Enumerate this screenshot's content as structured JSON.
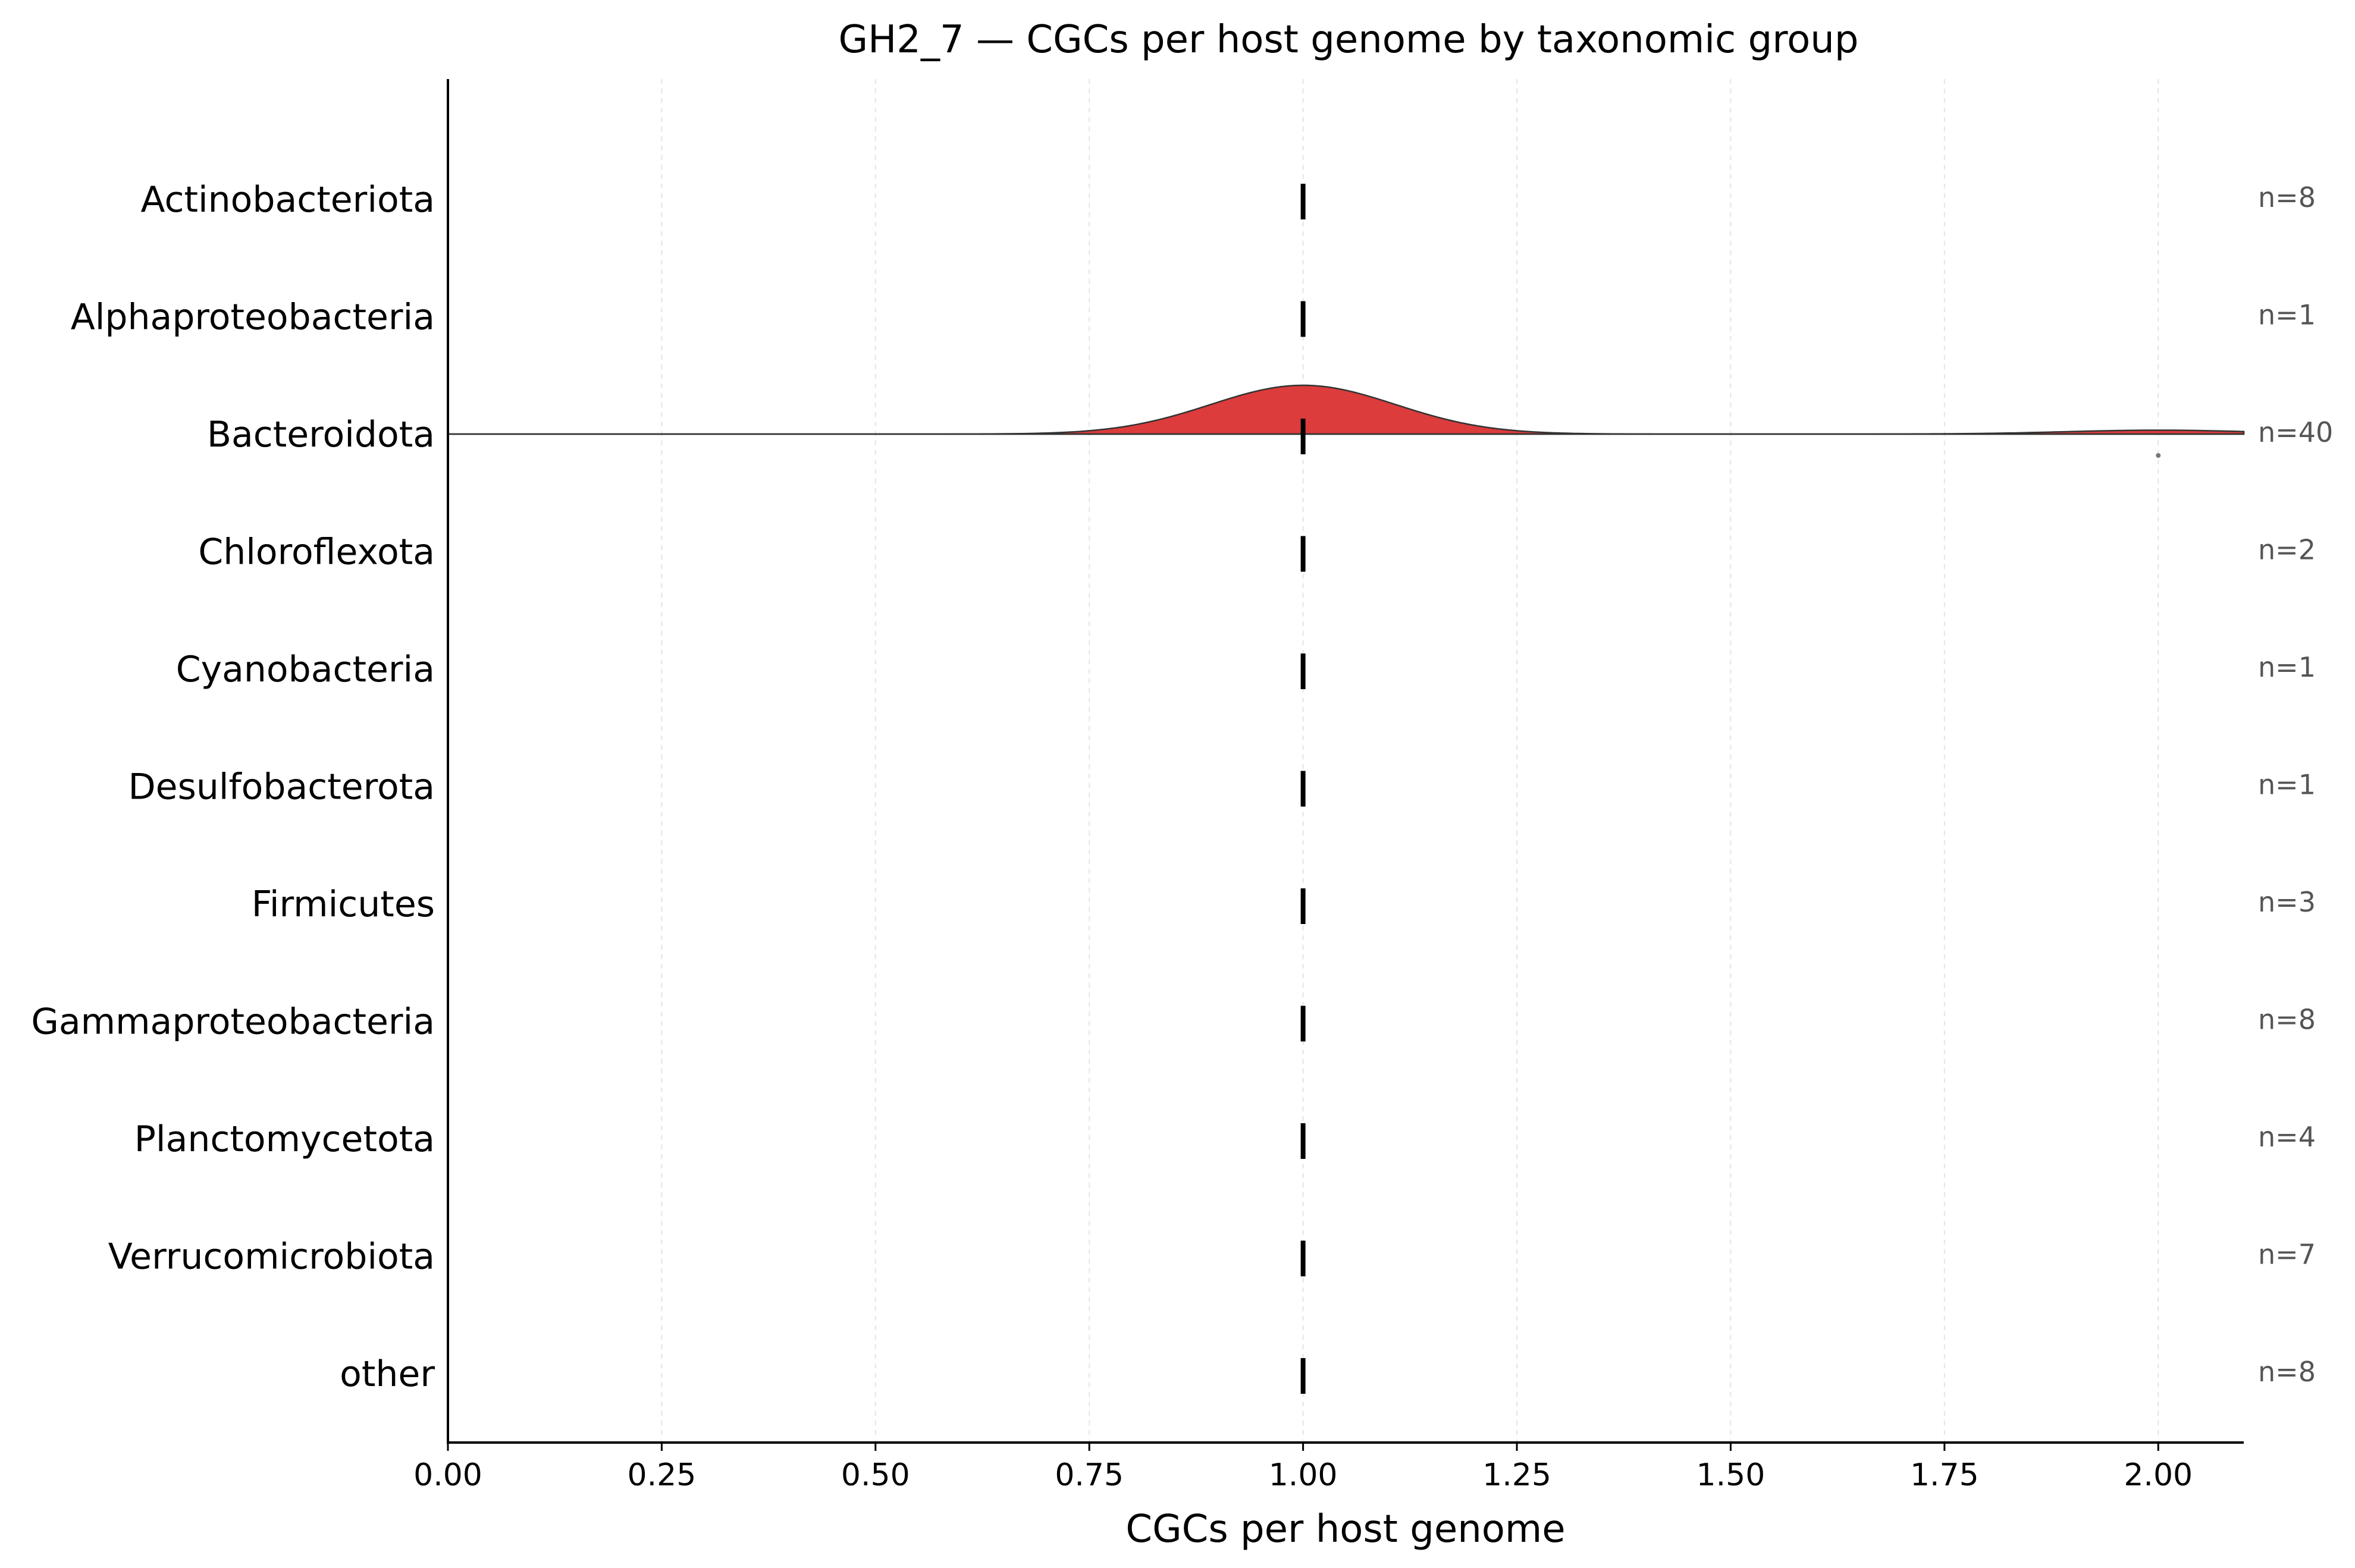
{
  "chart_data": {
    "type": "ridgeline",
    "title": "GH2_7 — CGCs per host genome by taxonomic group",
    "xlabel": "CGCs per host genome",
    "ylabel": "",
    "xlim": [
      0.0,
      2.1
    ],
    "x_ticks": [
      0.0,
      0.25,
      0.5,
      0.75,
      1.0,
      1.25,
      1.5,
      1.75,
      2.0
    ],
    "x_tick_labels": [
      "0.00",
      "0.25",
      "0.50",
      "0.75",
      "1.00",
      "1.25",
      "1.50",
      "1.75",
      "2.00"
    ],
    "grid": "vertical dashed",
    "categories": [
      "Actinobacteriota",
      "Alphaproteobacteria",
      "Bacteroidota",
      "Chloroflexota",
      "Cyanobacteria",
      "Desulfobacterota",
      "Firmicutes",
      "Gammaproteobacteria",
      "Planctomycetota",
      "Verrucomicrobiota",
      "other"
    ],
    "n_labels": [
      "n=8",
      "n=1",
      "n=40",
      "n=2",
      "n=1",
      "n=1",
      "n=3",
      "n=8",
      "n=4",
      "n=7",
      "n=8"
    ],
    "medians": [
      1.0,
      1.0,
      1.0,
      1.0,
      1.0,
      1.0,
      1.0,
      1.0,
      1.0,
      1.0,
      1.0
    ],
    "density": {
      "group": "Bacteroidota",
      "color": "#dc3c3c",
      "peaks": [
        {
          "center": 1.0,
          "relative_height": 1.0
        },
        {
          "center": 2.0,
          "relative_height": 0.08
        }
      ]
    },
    "outliers": [
      {
        "group": "Bacteroidota",
        "x": 2.0
      }
    ]
  }
}
